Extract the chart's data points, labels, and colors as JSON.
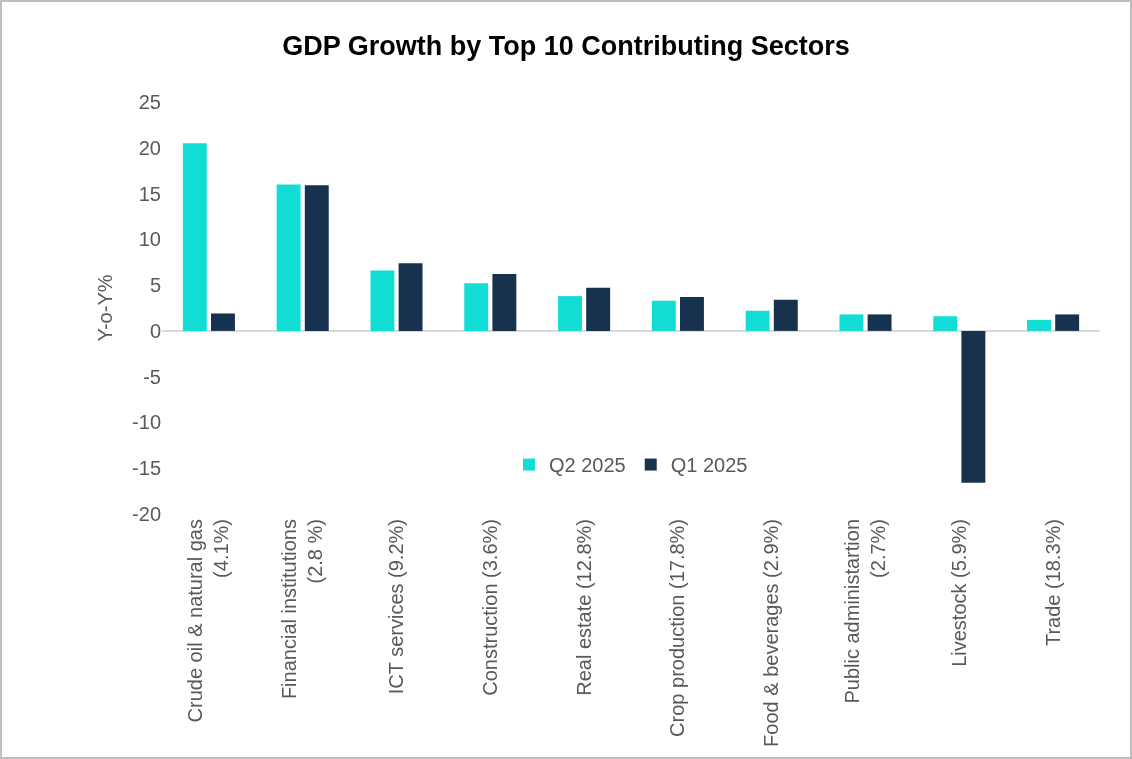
{
  "chart_data": {
    "type": "bar",
    "title": "GDP Growth by Top 10 Contributing Sectors",
    "ylabel": "Y-o-Y%",
    "categories": [
      "Crude oil & natural gas (4.1%)",
      "Financial institutions (2.8 %)",
      "ICT services (9.2%)",
      "Construction (3.6%)",
      "Real estate (12.8%)",
      "Crop production (17.8%)",
      "Food & beverages (2.9%)",
      "Public administartion (2.7%)",
      "Livestock (5.9%)",
      "Trade (18.3%)"
    ],
    "series": [
      {
        "name": "Q2 2025",
        "color": "#12ddd4",
        "values": [
          20.5,
          16.0,
          6.6,
          5.2,
          3.8,
          3.3,
          2.2,
          1.8,
          1.6,
          1.2
        ]
      },
      {
        "name": "Q1 2025",
        "color": "#17324e",
        "values": [
          1.9,
          15.9,
          7.4,
          6.2,
          4.7,
          3.7,
          3.4,
          1.8,
          -16.6,
          1.8
        ]
      }
    ],
    "ylim": [
      -20,
      25
    ],
    "yticks": [
      -20,
      -15,
      -10,
      -5,
      0,
      5,
      10,
      15,
      20,
      25
    ],
    "legend": "bottom"
  }
}
